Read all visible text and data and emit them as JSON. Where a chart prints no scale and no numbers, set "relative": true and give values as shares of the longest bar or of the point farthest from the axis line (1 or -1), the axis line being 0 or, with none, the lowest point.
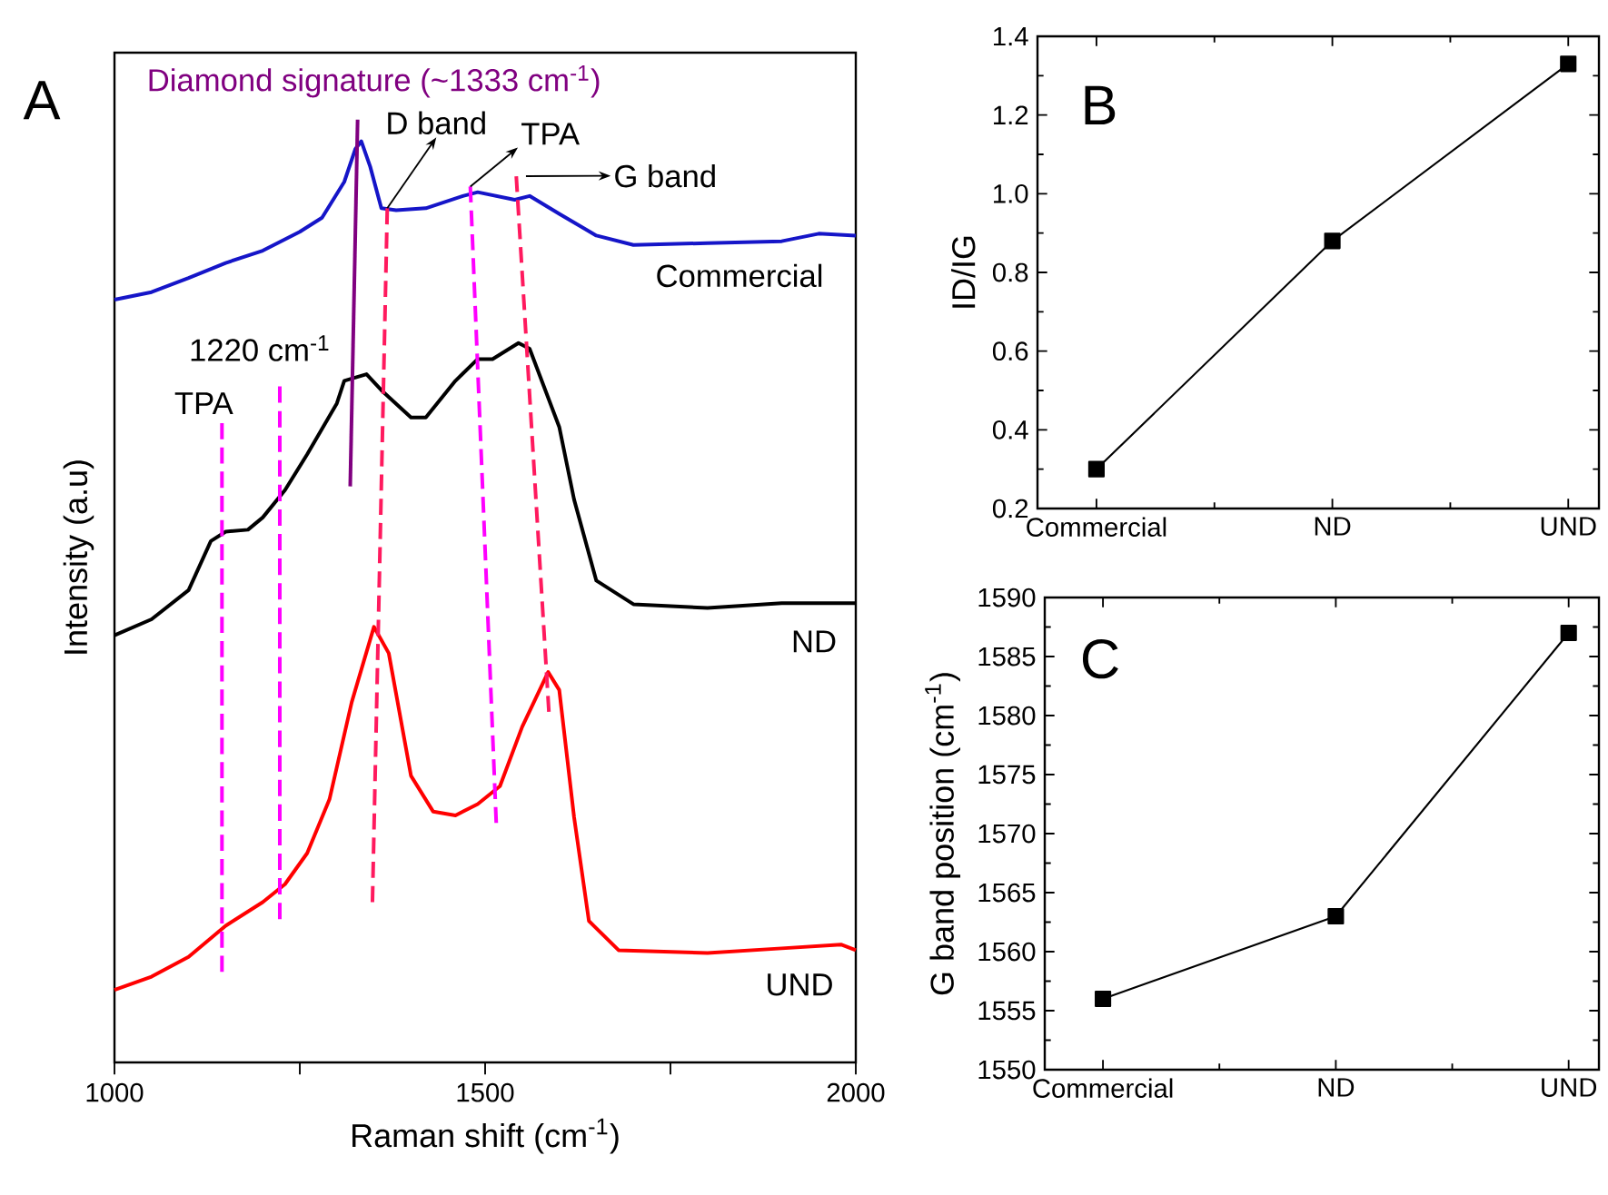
{
  "chart_data": [
    {
      "type": "line",
      "title": "A",
      "xlabel": "Raman shift (cm$^{-1}$)",
      "ylabel": "Intensity (a.u)",
      "relative": true,
      "annotations": [
        {
          "text": "D band",
          "x": 1368,
          "y": 0.906
        },
        {
          "text": "TPA",
          "x": 1480,
          "y": 0.929
        },
        "G band",
        {
          "text": "Commercial",
          "x": 2000,
          "y": 0.877
        },
        {
          "text": "1220 cm$^{-1}$",
          "x": 1223,
          "y": 0.717
        },
        {
          "text": "TPA",
          "x": 1145,
          "y": 0.678
        },
        {
          "text": "ND",
          "x": 2000,
          "y": 0.487
        },
        {
          "text": "UND",
          "x": 2000,
          "y": 0.119
        }
      ],
      "xlim": [
        1000,
        2000
      ],
      "xticks": [
        1000,
        {
          "value": 1250,
          "label": null
        },
        1500,
        {
          "value": 1750,
          "label": null
        },
        2000
      ],
      "series": [
        {
          "color": "#1515c8",
          "x": [
            1000,
            1050,
            1100,
            1150,
            1200,
            1250,
            1280,
            1310,
            1325,
            1333,
            1345,
            1360,
            1380,
            1420,
            1470,
            1490,
            1540,
            1560,
            1600,
            1650,
            1700,
            1800,
            1900,
            1950,
            2000
          ],
          "values": [
            0.809,
            0.817,
            0.832,
            0.848,
            0.861,
            0.881,
            0.896,
            0.934,
            0.969,
            0.977,
            0.95,
            0.906,
            0.904,
            0.906,
            0.919,
            0.923,
            0.915,
            0.919,
            0.9,
            0.877,
            0.867,
            0.869,
            0.871,
            0.879,
            0.877
          ]
        },
        {
          "color": "#000000",
          "x": [
            1000,
            1050,
            1100,
            1130,
            1150,
            1180,
            1200,
            1230,
            1260,
            1300,
            1310,
            1340,
            1360,
            1400,
            1420,
            1460,
            1490,
            1510,
            1545,
            1560,
            1600,
            1620,
            1650,
            1700,
            1800,
            1900,
            2000
          ],
          "values": [
            0.453,
            0.47,
            0.501,
            0.553,
            0.563,
            0.565,
            0.578,
            0.607,
            0.645,
            0.699,
            0.723,
            0.73,
            0.713,
            0.684,
            0.684,
            0.723,
            0.746,
            0.746,
            0.763,
            0.757,
            0.674,
            0.597,
            0.511,
            0.486,
            0.482,
            0.487,
            0.487
          ]
        },
        {
          "color": "#ff0000",
          "x": [
            1000,
            1050,
            1100,
            1150,
            1200,
            1230,
            1260,
            1290,
            1320,
            1350,
            1370,
            1400,
            1430,
            1460,
            1490,
            1520,
            1550,
            1585,
            1600,
            1620,
            1640,
            1680,
            1800,
            1900,
            1980,
            2000
          ],
          "values": [
            0.077,
            0.091,
            0.112,
            0.145,
            0.17,
            0.189,
            0.222,
            0.279,
            0.382,
            0.462,
            0.434,
            0.304,
            0.266,
            0.262,
            0.274,
            0.293,
            0.356,
            0.414,
            0.395,
            0.26,
            0.15,
            0.119,
            0.116,
            0.121,
            0.125,
            0.119
          ]
        },
        {
          "name": "Diamond signature (~1333 cm$^{-1}$)",
          "color": "#800080",
          "line_style": "solid",
          "x": [
            1328,
            1318
          ],
          "values": [
            1.0,
            0.611
          ]
        },
        {
          "color": "#ff00ff",
          "line_style": "dashed",
          "x": [
            1145,
            1145
          ],
          "values": [
            0.678,
            0.096
          ]
        },
        {
          "color": "#ff00ff",
          "line_style": "dashed",
          "x": [
            1223,
            1223
          ],
          "values": [
            0.717,
            0.152
          ]
        },
        {
          "color": "#ff1a5e",
          "line_style": "dashed",
          "x": [
            1368,
            1348
          ],
          "values": [
            0.906,
            0.17
          ]
        },
        {
          "color": "#ff00ff",
          "line_style": "dashed",
          "x": [
            1480,
            1515
          ],
          "values": [
            0.929,
            0.254
          ]
        },
        {
          "color": "#ff1a5e",
          "line_style": "dashed",
          "x": [
            1542,
            1586
          ],
          "values": [
            0.94,
            0.372
          ]
        }
      ]
    },
    {
      "type": "line",
      "title": "B",
      "ylabel": "ID/IG",
      "categories": [
        "Commercial",
        "ND",
        "UND"
      ],
      "values": [
        0.3,
        0.88,
        1.33
      ],
      "color": "#000000",
      "marker": "square",
      "ylim": [
        0.2,
        1.4
      ],
      "yticks": [
        0.2,
        0.4,
        0.6,
        0.8,
        {
          "value": 1.0,
          "label": "1.0"
        },
        1.2,
        1.4
      ]
    },
    {
      "type": "line",
      "title": "C",
      "ylabel": "G band position (cm$^{-1}$)",
      "categories": [
        "Commercial",
        "ND",
        "UND"
      ],
      "values": [
        1556,
        1563,
        1587
      ],
      "color": "#000000",
      "marker": "square",
      "ylim": [
        1550,
        1590
      ],
      "yticks": [
        1550,
        1555,
        1560,
        1565,
        1570,
        1575,
        1580,
        1585,
        1590
      ]
    }
  ]
}
